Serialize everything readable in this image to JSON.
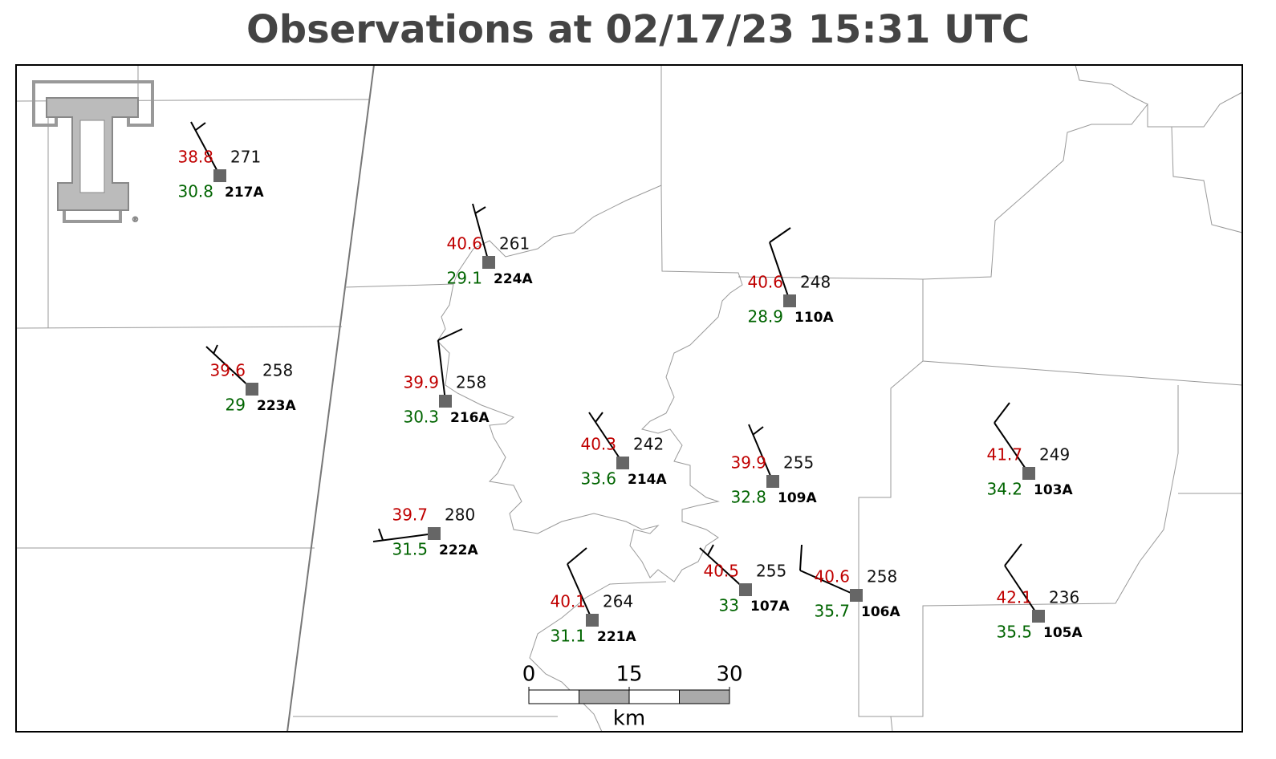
{
  "title": "Observations at 02/17/23 15:31 UTC",
  "stations": [
    {
      "id": "217A",
      "temperature": 38.8,
      "dewpoint": 30.8,
      "value": 271
    },
    {
      "id": "224A",
      "temperature": 40.6,
      "dewpoint": 29.1,
      "value": 261
    },
    {
      "id": "110A",
      "temperature": 40.6,
      "dewpoint": 28.9,
      "value": 248
    },
    {
      "id": "223A",
      "temperature": 39.6,
      "dewpoint": 29.0,
      "value": 258
    },
    {
      "id": "216A",
      "temperature": 39.9,
      "dewpoint": 30.3,
      "value": 258
    },
    {
      "id": "214A",
      "temperature": 40.3,
      "dewpoint": 33.6,
      "value": 242
    },
    {
      "id": "109A",
      "temperature": 39.9,
      "dewpoint": 32.8,
      "value": 255
    },
    {
      "id": "103A",
      "temperature": 41.7,
      "dewpoint": 34.2,
      "value": 249
    },
    {
      "id": "222A",
      "temperature": 39.7,
      "dewpoint": 31.5,
      "value": 280
    },
    {
      "id": "221A",
      "temperature": 40.1,
      "dewpoint": 31.1,
      "value": 264
    },
    {
      "id": "107A",
      "temperature": 40.5,
      "dewpoint": 33.0,
      "value": 255
    },
    {
      "id": "106A",
      "temperature": 40.6,
      "dewpoint": 35.7,
      "value": 258
    },
    {
      "id": "105A",
      "temperature": 42.1,
      "dewpoint": 35.5,
      "value": 236
    }
  ],
  "scale_bar": {
    "ticks": [
      0,
      15,
      30
    ],
    "unit": "km"
  }
}
